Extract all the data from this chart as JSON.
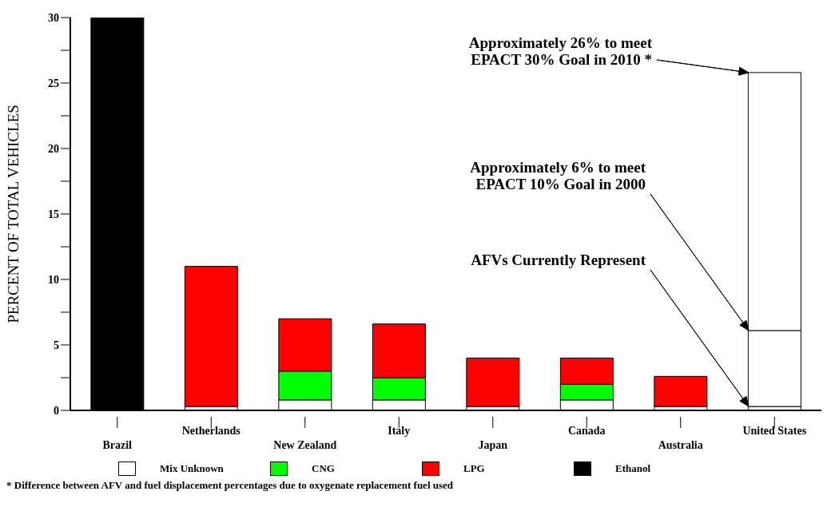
{
  "chart_data": {
    "type": "bar",
    "stacked": true,
    "ylabel": "PERCENT OF TOTAL VEHICLES",
    "categories": [
      "Brazil",
      "Netherlands",
      "New Zealand",
      "Italy",
      "Japan",
      "Canada",
      "Australia",
      "United States"
    ],
    "series": [
      {
        "name": "Mix Unknown",
        "color": "#ffffff",
        "values": [
          null,
          0.3,
          0.8,
          0.8,
          0.3,
          0.8,
          0.3,
          0.3
        ]
      },
      {
        "name": "CNG",
        "color": "#00ff00",
        "values": [
          null,
          null,
          2.2,
          1.7,
          null,
          1.2,
          null,
          null
        ]
      },
      {
        "name": "LPG",
        "color": "#ff0000",
        "values": [
          null,
          10.7,
          4.0,
          4.1,
          3.7,
          2.0,
          2.3,
          null
        ]
      },
      {
        "name": "Ethanol",
        "color": "#000000",
        "values": [
          30,
          null,
          null,
          null,
          null,
          null,
          null,
          null
        ]
      },
      {
        "color": "#ffffff",
        "values": [
          null,
          null,
          null,
          null,
          null,
          null,
          null,
          5.8
        ]
      },
      {
        "color": "#ffffff",
        "values": [
          null,
          null,
          null,
          null,
          null,
          null,
          null,
          19.7
        ]
      }
    ],
    "ylim": [
      0,
      30
    ],
    "yticks": [
      0,
      {
        "value": 2.5,
        "label": null
      },
      5,
      {
        "value": 7.5,
        "label": null
      },
      10,
      {
        "value": 12.5,
        "label": null
      },
      15,
      {
        "value": 17.5,
        "label": null
      },
      20,
      {
        "value": 22.5,
        "label": null
      },
      25,
      {
        "value": 27.5,
        "label": null
      },
      30
    ],
    "legend": "bottom",
    "annotations": [
      "Approximately 26% to meet\nEPACT 30% Goal in 2010 *",
      "Approximately 6% to meet\nEPACT 10% Goal in 2000",
      "AFVs Currently Represent",
      "* Difference between AFV and fuel displacement percentages due to oxygenate replacement fuel used"
    ]
  }
}
